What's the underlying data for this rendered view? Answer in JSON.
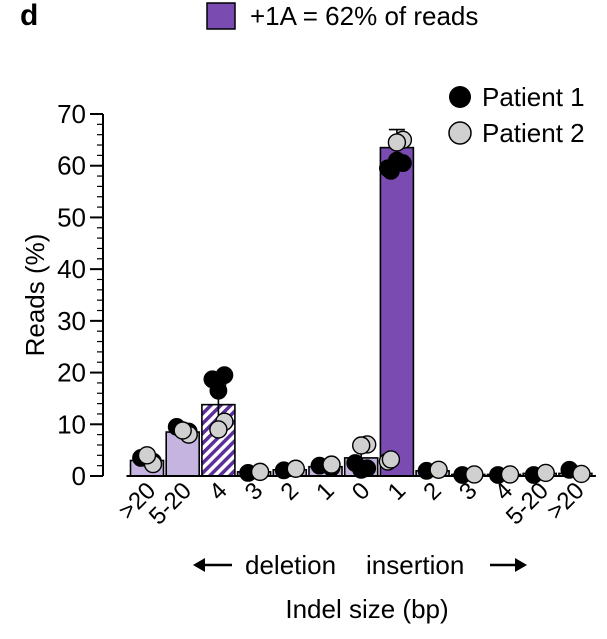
{
  "panel_label": "d",
  "top_legend_text": "+1A = 62% of reads",
  "chart_data": {
    "type": "bar",
    "ylabel": "Reads (%)",
    "xlabel": "Indel size (bp)",
    "direction_left": "deletion",
    "direction_right": "insertion",
    "ylim": [
      0,
      70
    ],
    "yticks": [
      0,
      10,
      20,
      30,
      40,
      50,
      60,
      70
    ],
    "categories": [
      ">20",
      "5-20",
      "4",
      "3",
      "2",
      "1",
      "0",
      "1",
      "2",
      "3",
      "4",
      "5-20",
      ">20"
    ],
    "groups": [
      "deletion",
      "deletion",
      "deletion",
      "deletion",
      "deletion",
      "deletion",
      "none",
      "insertion",
      "insertion",
      "insertion",
      "insertion",
      "insertion",
      "insertion"
    ],
    "values": [
      3.0,
      8.5,
      13.8,
      0.8,
      1.2,
      1.8,
      3.5,
      63.5,
      1.0,
      0.3,
      0.3,
      0.5,
      0.5
    ],
    "errors": [
      0.9,
      0.8,
      3.8,
      0.3,
      0.4,
      0.4,
      2.0,
      3.5,
      0.3,
      0.1,
      0.1,
      0.6,
      0.3
    ],
    "bar_styles": [
      "light",
      "light",
      "hatched",
      "light",
      "light",
      "light",
      "light",
      "dark",
      "light",
      "light",
      "light",
      "light",
      "light"
    ],
    "colors": {
      "bar_light": "#c6b4e0",
      "bar_dark": "#7a4bb0",
      "bar_stroke": "#000000",
      "hatch": "#5b2e9a",
      "patient1": "#000000",
      "patient2": "#d0d0d0"
    },
    "series": [
      {
        "name": "Patient 1",
        "values": [
          [
            3.5,
            2.8
          ],
          [
            9.5,
            8.6
          ],
          [
            18.7,
            19.5,
            16.5
          ],
          [
            0.6
          ],
          [
            1.1
          ],
          [
            2.0,
            1.6
          ],
          [
            2.5,
            1.5,
            1.2
          ],
          [
            59,
            60.5,
            61,
            59.5
          ],
          [
            1.0
          ],
          [
            0.2
          ],
          [
            0.2
          ],
          [
            0.2
          ],
          [
            1.2
          ]
        ]
      },
      {
        "name": "Patient 2",
        "values": [
          [
            2.3,
            4.0
          ],
          [
            8.0,
            8.8
          ],
          [
            10.5,
            9.0
          ],
          [
            0.8
          ],
          [
            1.4
          ],
          [
            2.2
          ],
          [
            6.1,
            5.9
          ],
          [
            65,
            64.5,
            2.8,
            3.2
          ],
          [
            1.2
          ],
          [
            0.3
          ],
          [
            0.3
          ],
          [
            0.6
          ],
          [
            0.4
          ]
        ]
      }
    ]
  }
}
